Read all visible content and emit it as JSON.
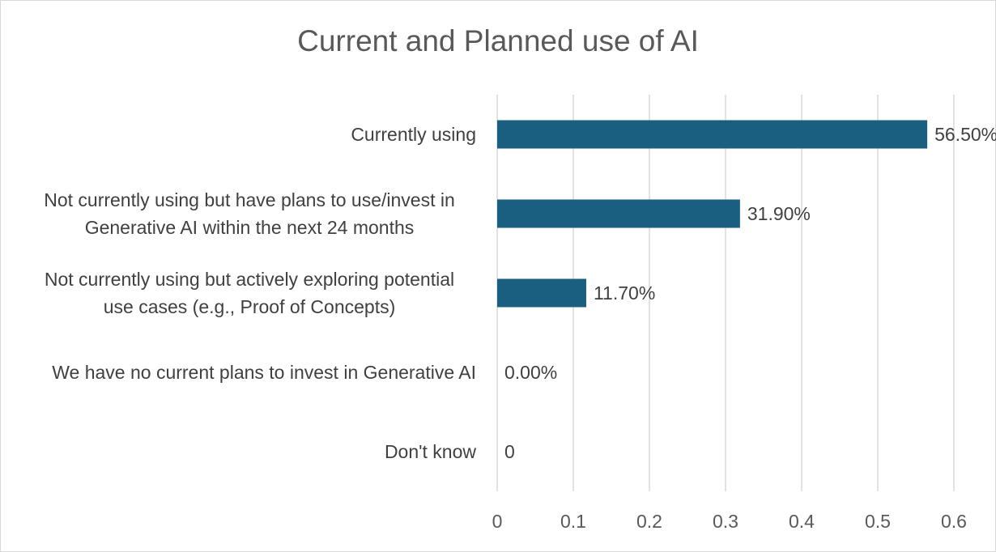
{
  "chart_data": {
    "type": "bar",
    "orientation": "horizontal",
    "title": "Current and Planned use of AI",
    "xlabel": "",
    "ylabel": "",
    "categories": [
      [
        "Currently using"
      ],
      [
        "Not currently using but have plans to use/invest in",
        "Generative AI within the next 24 months"
      ],
      [
        "Not currently using but actively exploring potential",
        "use cases (e.g., Proof of Concepts)"
      ],
      [
        "We have no current plans to invest in Generative AI"
      ],
      [
        "Don't know"
      ]
    ],
    "values": [
      0.565,
      0.319,
      0.117,
      0.0,
      0.0
    ],
    "data_labels": [
      "56.50%",
      "31.90%",
      "11.70%",
      "0.00%",
      "0"
    ],
    "xlim": [
      0,
      0.6
    ],
    "xticks": [
      0,
      0.1,
      0.2,
      0.3,
      0.4,
      0.5,
      0.6
    ],
    "xtick_labels": [
      "0",
      "0.1",
      "0.2",
      "0.3",
      "0.4",
      "0.5",
      "0.6"
    ],
    "grid": true,
    "legend": "none",
    "bar_color": "#1a5f80"
  }
}
